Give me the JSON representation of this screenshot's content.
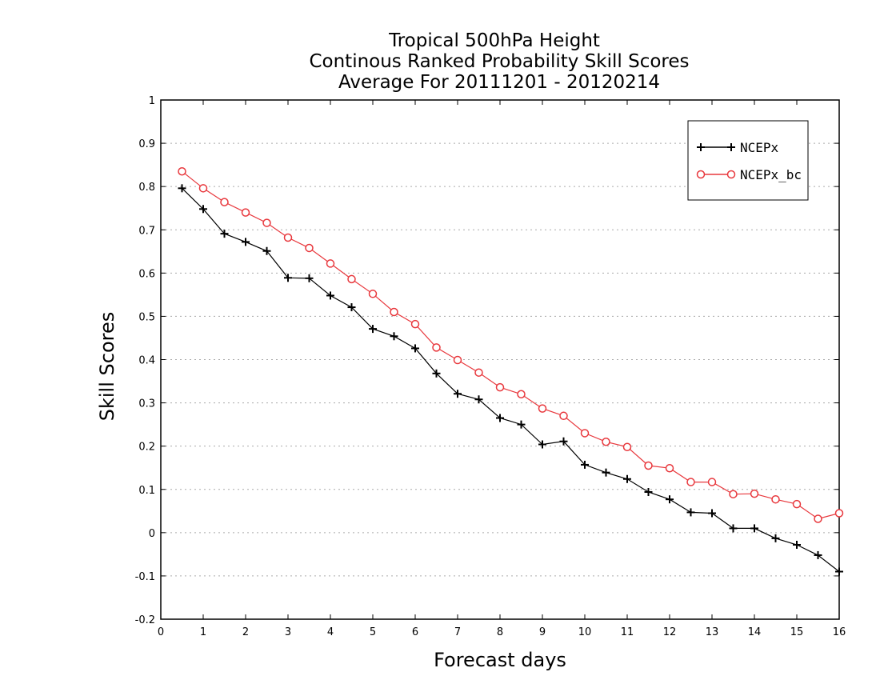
{
  "chart_data": {
    "type": "line",
    "title": [
      "Tropical 500hPa Height",
      "Continous Ranked Probability Skill Scores",
      "Average For 20111201 - 20120214"
    ],
    "xlabel": "Forecast days",
    "ylabel": "Skill Scores",
    "xlim": [
      0,
      16
    ],
    "ylim": [
      -0.2,
      1
    ],
    "xticks": [
      0,
      1,
      2,
      3,
      4,
      5,
      6,
      7,
      8,
      9,
      10,
      11,
      12,
      13,
      14,
      15,
      16
    ],
    "yticks": [
      -0.2,
      -0.1,
      0,
      0.1,
      0.2,
      0.3,
      0.4,
      0.5,
      0.6,
      0.7,
      0.8,
      0.9,
      1
    ],
    "grid": "horizontal-dotted",
    "legend_position": "top-right",
    "x": [
      0.5,
      1,
      1.5,
      2,
      2.5,
      3,
      3.5,
      4,
      4.5,
      5,
      5.5,
      6,
      6.5,
      7,
      7.5,
      8,
      8.5,
      9,
      9.5,
      10,
      10.5,
      11,
      11.5,
      12,
      12.5,
      13,
      13.5,
      14,
      14.5,
      15,
      15.5,
      16
    ],
    "series": [
      {
        "name": "NCEPx",
        "color": "#000000",
        "marker": "plus",
        "values": [
          0.796,
          0.748,
          0.691,
          0.672,
          0.651,
          0.589,
          0.588,
          0.548,
          0.521,
          0.471,
          0.454,
          0.426,
          0.368,
          0.321,
          0.308,
          0.265,
          0.25,
          0.204,
          0.211,
          0.157,
          0.139,
          0.124,
          0.094,
          0.077,
          0.047,
          0.045,
          0.01,
          0.01,
          -0.013,
          -0.028,
          -0.052,
          -0.09
        ]
      },
      {
        "name": "NCEPx_bc",
        "color": "#e8383d",
        "marker": "circle",
        "values": [
          0.835,
          0.796,
          0.764,
          0.74,
          0.716,
          0.682,
          0.658,
          0.622,
          0.586,
          0.552,
          0.51,
          0.482,
          0.428,
          0.399,
          0.37,
          0.336,
          0.32,
          0.287,
          0.27,
          0.23,
          0.21,
          0.198,
          0.155,
          0.149,
          0.117,
          0.117,
          0.089,
          0.09,
          0.077,
          0.066,
          0.032,
          0.045
        ]
      }
    ]
  }
}
